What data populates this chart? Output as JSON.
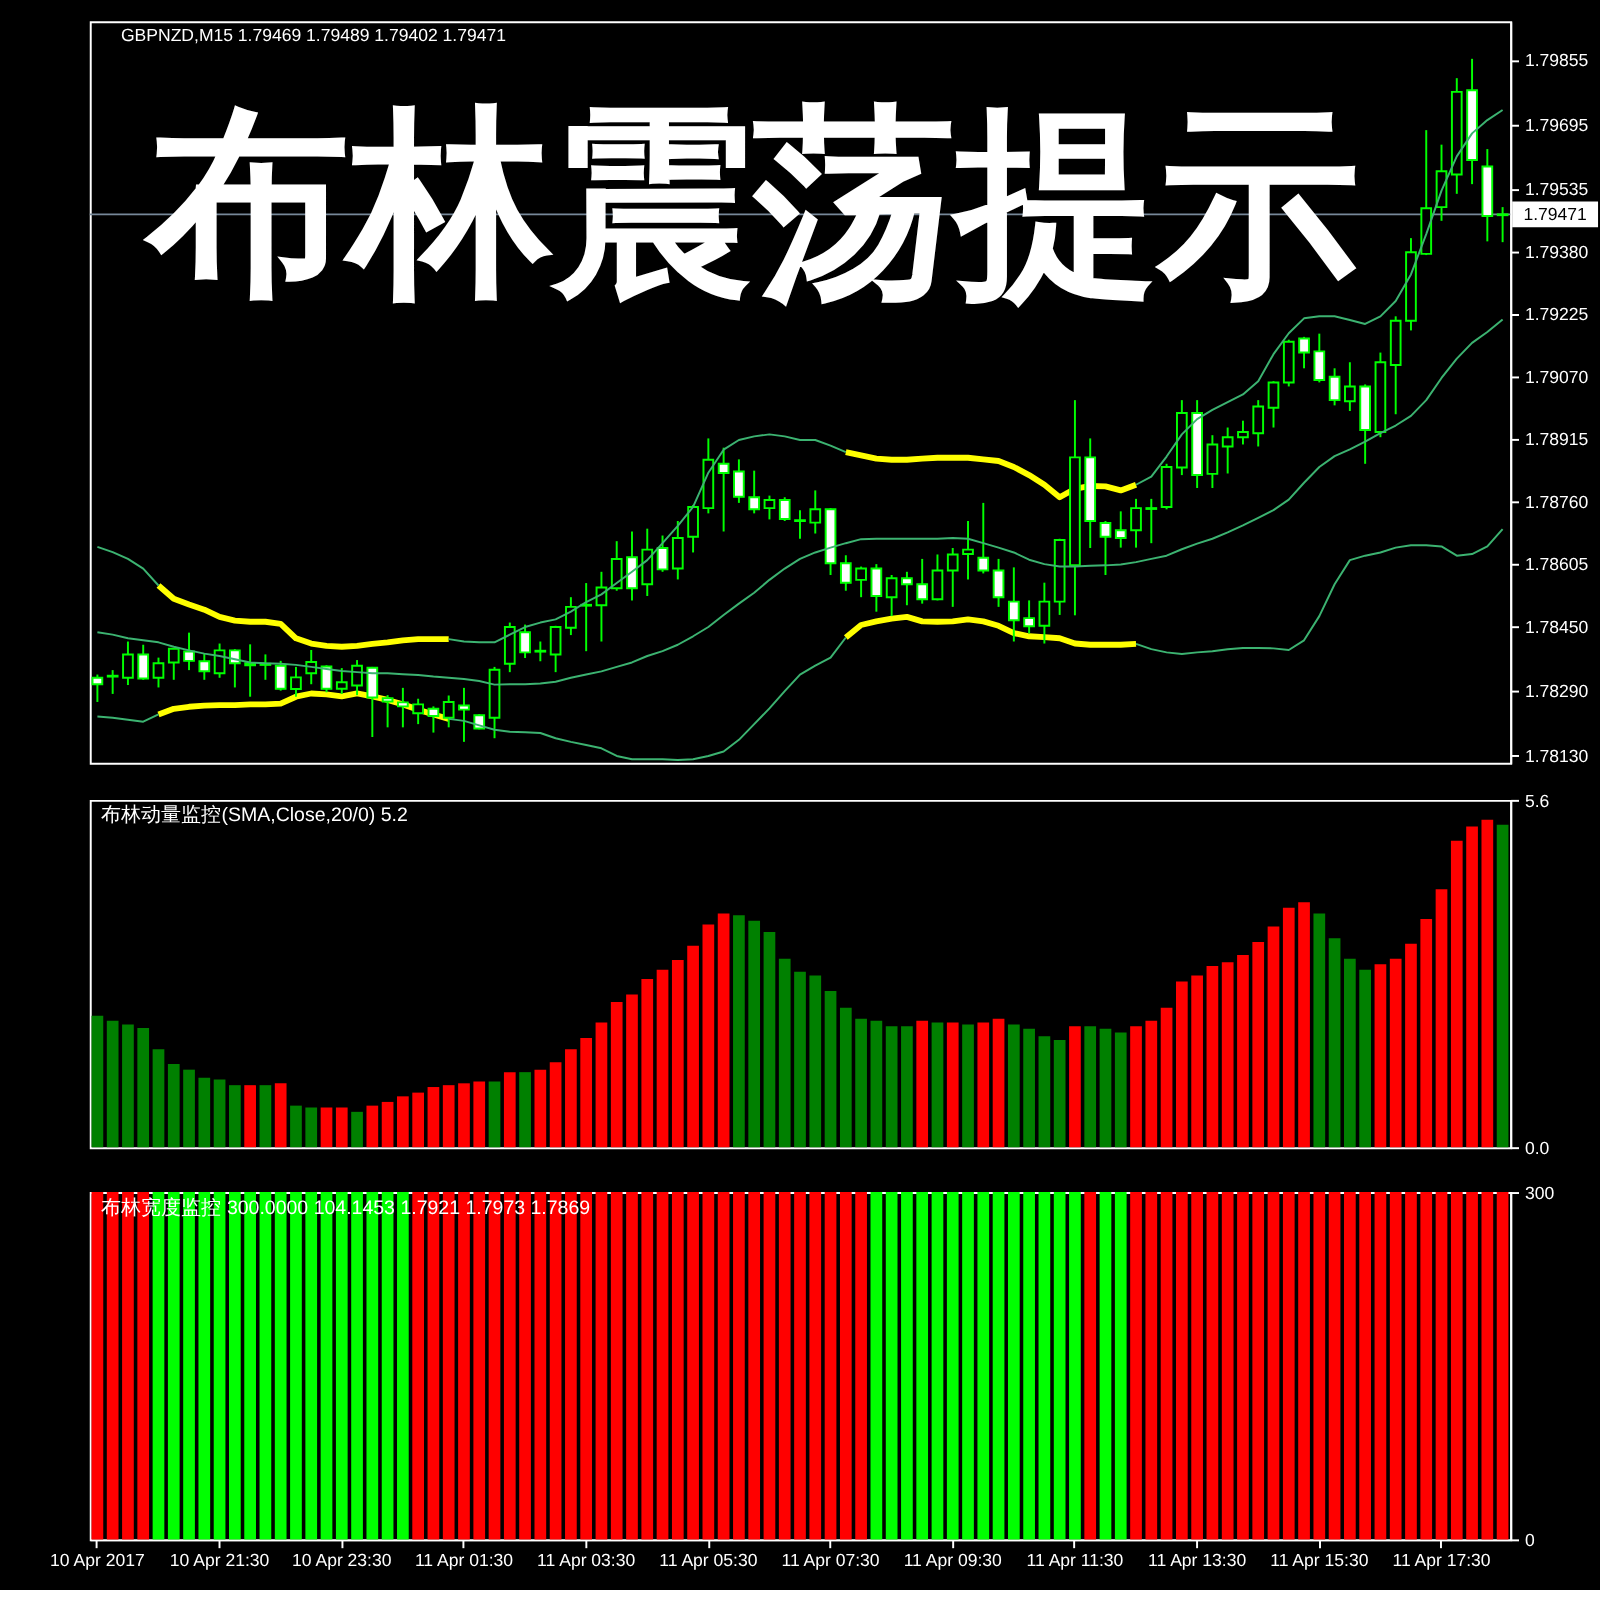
{
  "chart_data": [
    {
      "type": "candlestick",
      "title": "布林震荡提示",
      "subtitle": "GBPNZD,M15 1.79469 1.79489 1.79402 1.79471",
      "categories": [
        null,
        null,
        null,
        null,
        null,
        null,
        null,
        null,
        null,
        null,
        null,
        null,
        null,
        null,
        null,
        null,
        null,
        null,
        null,
        null,
        null,
        null,
        null,
        null,
        null,
        null,
        null,
        null,
        null,
        null,
        null,
        null,
        null,
        null,
        null,
        null,
        null,
        null,
        null,
        null,
        null,
        null,
        null,
        null,
        null,
        null,
        null,
        null,
        null,
        null,
        null,
        null,
        null,
        null,
        null,
        null,
        null,
        null,
        null,
        null,
        null,
        null,
        null,
        null,
        null,
        null,
        null,
        null,
        null,
        null,
        null,
        null,
        null,
        null,
        null,
        null,
        null,
        null,
        null,
        null,
        null,
        null,
        null,
        null,
        null,
        null,
        null,
        null,
        null,
        null,
        null,
        null,
        null
      ],
      "ohlc": [
        [
          1.78321,
          1.78329,
          1.78261,
          1.78305
        ],
        [
          1.78324,
          1.7834,
          1.78281,
          1.78326
        ],
        [
          1.78321,
          1.78411,
          1.78303,
          1.78379
        ],
        [
          1.78379,
          1.78403,
          1.78316,
          1.78319
        ],
        [
          1.78321,
          1.78371,
          1.78297,
          1.78357
        ],
        [
          1.78359,
          1.78395,
          1.78316,
          1.78393
        ],
        [
          1.78386,
          1.78433,
          1.7834,
          1.78363
        ],
        [
          1.78362,
          1.78382,
          1.78316,
          1.78337
        ],
        [
          1.78332,
          1.78406,
          1.78321,
          1.78389
        ],
        [
          1.78389,
          1.78392,
          1.78297,
          1.78357
        ],
        [
          1.78352,
          1.78404,
          1.78274,
          1.78357
        ],
        [
          1.78356,
          1.78379,
          1.78316,
          1.78353
        ],
        [
          1.78351,
          1.78363,
          1.78289,
          1.78294
        ],
        [
          1.78293,
          1.78348,
          1.78274,
          1.78322
        ],
        [
          1.78332,
          1.7839,
          1.78305,
          1.7836
        ],
        [
          1.78349,
          1.78352,
          1.78285,
          1.78294
        ],
        [
          1.78294,
          1.78345,
          1.78281,
          1.7831
        ],
        [
          1.78302,
          1.78365,
          1.78278,
          1.78351
        ],
        [
          1.78346,
          1.78348,
          1.78174,
          1.78272
        ],
        [
          1.7827,
          1.78278,
          1.78198,
          1.78262
        ],
        [
          1.7826,
          1.78296,
          1.78198,
          1.7825
        ],
        [
          1.78233,
          1.78269,
          1.78206,
          1.78255
        ],
        [
          1.78244,
          1.7825,
          1.78185,
          1.78226
        ],
        [
          1.78222,
          1.78277,
          1.78198,
          1.78261
        ],
        [
          1.78252,
          1.78296,
          1.78162,
          1.78242
        ],
        [
          1.78228,
          1.78231,
          1.78193,
          1.78195
        ],
        [
          1.78222,
          1.78348,
          1.78171,
          1.78341
        ],
        [
          1.78356,
          1.78458,
          1.78335,
          1.78447
        ],
        [
          1.78434,
          1.78453,
          1.7837,
          1.78384
        ],
        [
          1.78386,
          1.78411,
          1.78362,
          1.78388
        ],
        [
          1.78379,
          1.7845,
          1.78335,
          1.78447
        ],
        [
          1.78445,
          1.78521,
          1.78427,
          1.78497
        ],
        [
          1.785,
          1.78556,
          1.78387,
          1.78502
        ],
        [
          1.78501,
          1.78584,
          1.78411,
          1.78545
        ],
        [
          1.78543,
          1.7866,
          1.78537,
          1.78616
        ],
        [
          1.7862,
          1.78684,
          1.78513,
          1.78543
        ],
        [
          1.78553,
          1.78691,
          1.78524,
          1.78639
        ],
        [
          1.78643,
          1.78674,
          1.78584,
          1.7859
        ],
        [
          1.78592,
          1.7871,
          1.78565,
          1.78668
        ],
        [
          1.78671,
          1.7875,
          1.78632,
          1.78745
        ],
        [
          1.78742,
          1.78915,
          1.78729,
          1.78862
        ],
        [
          1.78852,
          1.78892,
          1.78684,
          1.78829
        ],
        [
          1.78833,
          1.78863,
          1.78755,
          1.7877
        ],
        [
          1.78769,
          1.78835,
          1.78729,
          1.78739
        ],
        [
          1.78742,
          1.78773,
          1.78714,
          1.78762
        ],
        [
          1.78762,
          1.78769,
          1.7871,
          1.78715
        ],
        [
          1.78712,
          1.78737,
          1.78666,
          1.7871
        ],
        [
          1.78706,
          1.78786,
          1.78679,
          1.78739
        ],
        [
          1.78739,
          1.78742,
          1.78576,
          1.78605
        ],
        [
          1.78605,
          1.78625,
          1.78537,
          1.78557
        ],
        [
          1.78564,
          1.78597,
          1.78521,
          1.78592
        ],
        [
          1.78592,
          1.78603,
          1.78485,
          1.78524
        ],
        [
          1.78521,
          1.78576,
          1.78474,
          1.78568
        ],
        [
          1.78568,
          1.78584,
          1.78501,
          1.78553
        ],
        [
          1.78553,
          1.78616,
          1.78505,
          1.78516
        ],
        [
          1.78516,
          1.78627,
          1.78513,
          1.78587
        ],
        [
          1.78587,
          1.78643,
          1.78497,
          1.78627
        ],
        [
          1.78628,
          1.7871,
          1.78565,
          1.78639
        ],
        [
          1.78619,
          1.78755,
          1.7858,
          1.78587
        ],
        [
          1.78587,
          1.78616,
          1.78497,
          1.78521
        ],
        [
          1.7851,
          1.78595,
          1.78411,
          1.78464
        ],
        [
          1.78469,
          1.78513,
          1.78431,
          1.78449
        ],
        [
          1.7845,
          1.78557,
          1.78406,
          1.7851
        ],
        [
          1.7851,
          1.78666,
          1.78477,
          1.78663
        ],
        [
          1.786,
          1.7901,
          1.78476,
          1.78868
        ],
        [
          1.78868,
          1.78915,
          1.78643,
          1.7871
        ],
        [
          1.78705,
          1.7871,
          1.78576,
          1.78671
        ],
        [
          1.78687,
          1.78734,
          1.78644,
          1.78668
        ],
        [
          1.78687,
          1.78765,
          1.78644,
          1.78742
        ],
        [
          1.7874,
          1.78765,
          1.78655,
          1.78742
        ],
        [
          1.78745,
          1.78852,
          1.78739,
          1.78844
        ],
        [
          1.78843,
          1.7901,
          1.78824,
          1.78978
        ],
        [
          1.78978,
          1.7901,
          1.78792,
          1.78824
        ],
        [
          1.78827,
          1.78923,
          1.78792,
          1.789
        ],
        [
          1.78895,
          1.78942,
          1.78828,
          1.78918
        ],
        [
          1.78918,
          1.78959,
          1.789,
          1.78931
        ],
        [
          1.78928,
          1.7901,
          1.78895,
          1.78994
        ],
        [
          1.78991,
          1.79057,
          1.78942,
          1.79054
        ],
        [
          1.79054,
          1.7916,
          1.79044,
          1.79155
        ],
        [
          1.79163,
          1.79167,
          1.79089,
          1.79128
        ],
        [
          1.79131,
          1.79175,
          1.79054,
          1.7906
        ],
        [
          1.79068,
          1.79089,
          1.78997,
          1.7901
        ],
        [
          1.79007,
          1.79104,
          1.78983,
          1.79044
        ],
        [
          1.79044,
          1.79049,
          1.78852,
          1.78936
        ],
        [
          1.78931,
          1.79128,
          1.78918,
          1.79104
        ],
        [
          1.79097,
          1.79218,
          1.78975,
          1.79207
        ],
        [
          1.79207,
          1.79412,
          1.79183,
          1.79377
        ],
        [
          1.79373,
          1.7968,
          1.7937,
          1.79486
        ],
        [
          1.79489,
          1.79644,
          1.79455,
          1.79578
        ],
        [
          1.7957,
          1.79809,
          1.79522,
          1.79775
        ],
        [
          1.79779,
          1.79857,
          1.79546,
          1.79606
        ],
        [
          1.7959,
          1.79633,
          1.79404,
          1.79467
        ],
        [
          1.79469,
          1.79489,
          1.79402,
          1.79471
        ]
      ],
      "color": "#00ff00",
      "colors": [
        "#ffffff",
        "#000000",
        "#000000",
        "#ffffff",
        "#000000",
        "#000000",
        "#ffffff",
        "#ffffff",
        "#000000",
        "#ffffff",
        "#000000",
        "#ffffff",
        "#ffffff",
        "#000000",
        "#000000",
        "#ffffff",
        "#000000",
        "#000000",
        "#ffffff",
        "#ffffff",
        "#ffffff",
        "#000000",
        "#ffffff",
        "#000000",
        "#ffffff",
        "#ffffff",
        "#000000",
        "#000000",
        "#ffffff",
        "#000000",
        "#000000",
        "#000000",
        "#000000",
        "#000000",
        "#000000",
        "#ffffff",
        "#000000",
        "#ffffff",
        "#000000",
        "#000000",
        "#000000",
        "#ffffff",
        "#ffffff",
        "#ffffff",
        "#000000",
        "#ffffff",
        "#ffffff",
        "#000000",
        "#ffffff",
        "#ffffff",
        "#000000",
        "#ffffff",
        "#000000",
        "#ffffff",
        "#ffffff",
        "#000000",
        "#000000",
        "#000000",
        "#ffffff",
        "#ffffff",
        "#ffffff",
        "#ffffff",
        "#000000",
        "#000000",
        "#000000",
        "#ffffff",
        "#ffffff",
        "#ffffff",
        "#000000",
        "#000000",
        "#000000",
        "#000000",
        "#ffffff",
        "#000000",
        "#000000",
        "#000000",
        "#000000",
        "#000000",
        "#000000",
        "#ffffff",
        "#ffffff",
        "#ffffff",
        "#000000",
        "#ffffff",
        "#000000",
        "#000000",
        "#000000",
        "#000000",
        "#000000",
        "#000000",
        "#ffffff",
        "#ffffff",
        "#000000"
      ],
      "series": [
        {
          "type": "line",
          "color": "#3cb371",
          "values": [
            1.78646,
            1.78633,
            1.78616,
            1.78592,
            1.7855,
            null,
            null,
            null,
            null,
            null,
            null,
            null,
            null,
            null,
            null,
            null,
            null,
            null,
            null,
            null,
            null,
            null,
            null,
            1.78417,
            1.78411,
            1.78409,
            1.78409,
            1.78428,
            1.78447,
            1.78458,
            1.78466,
            1.78485,
            1.78509,
            1.78528,
            1.78556,
            1.78584,
            1.78613,
            1.78655,
            1.78698,
            1.78745,
            1.7883,
            1.78887,
            1.78911,
            1.7892,
            1.78925,
            1.7892,
            1.78911,
            1.78911,
            1.78897,
            1.78881,
            null,
            null,
            null,
            null,
            null,
            null,
            null,
            null,
            null,
            null,
            null,
            null,
            null,
            null,
            null,
            null,
            null,
            null,
            1.788,
            1.7882,
            1.7887,
            1.78925,
            1.78963,
            1.78986,
            1.79005,
            1.79024,
            1.79057,
            1.79124,
            1.79176,
            1.79213,
            1.79218,
            1.79218,
            1.79209,
            1.79199,
            1.79218,
            1.79256,
            1.79322,
            1.79422,
            1.7953,
            1.79615,
            1.79672,
            1.79705,
            1.7973
          ]
        },
        {
          "type": "line",
          "color": "#3cb371",
          "values": [
            1.78434,
            1.78428,
            1.78419,
            1.78414,
            1.78409,
            1.78398,
            1.78389,
            1.78381,
            1.78375,
            1.78367,
            1.78359,
            1.78357,
            1.78356,
            1.78353,
            1.78348,
            1.78343,
            1.78338,
            1.78335,
            1.78332,
            1.78332,
            1.7833,
            1.78328,
            1.78324,
            1.78321,
            1.78318,
            1.78313,
            1.78304,
            1.78305,
            1.78305,
            1.78307,
            1.78311,
            1.78321,
            1.78329,
            1.78337,
            1.78348,
            1.78359,
            1.78375,
            1.78387,
            1.78403,
            1.78424,
            1.78447,
            1.78477,
            1.78505,
            1.78532,
            1.78564,
            1.78592,
            1.78616,
            1.78632,
            1.78644,
            1.78655,
            1.78665,
            1.78666,
            1.78666,
            1.78666,
            1.78666,
            1.78666,
            1.78668,
            1.78666,
            1.78655,
            1.78644,
            1.78632,
            1.78614,
            1.78603,
            1.78597,
            1.78597,
            1.78599,
            1.786,
            1.78602,
            1.78608,
            1.78616,
            1.78624,
            1.7864,
            1.78654,
            1.78666,
            1.78682,
            1.78699,
            1.78718,
            1.78737,
            1.78763,
            1.78805,
            1.78844,
            1.78871,
            1.78888,
            1.78907,
            1.78928,
            1.78947,
            1.78971,
            1.7901,
            1.79065,
            1.79113,
            1.79152,
            1.79179,
            1.7921
          ]
        },
        {
          "type": "line",
          "color": "#3cb371",
          "values": [
            1.78225,
            1.78222,
            1.78217,
            1.78212,
            1.7823,
            null,
            null,
            null,
            null,
            null,
            null,
            null,
            null,
            null,
            null,
            null,
            null,
            null,
            null,
            null,
            null,
            null,
            null,
            1.78219,
            1.78214,
            1.78203,
            1.78192,
            1.78187,
            1.78186,
            1.78184,
            1.78171,
            1.78162,
            1.78154,
            1.78146,
            1.78127,
            1.78119,
            1.78119,
            1.78119,
            1.78117,
            1.78119,
            1.78127,
            1.78138,
            1.78167,
            1.78206,
            1.78245,
            1.78288,
            1.78329,
            1.78351,
            1.78371,
            1.78421,
            null,
            null,
            null,
            null,
            null,
            null,
            null,
            null,
            null,
            null,
            null,
            null,
            null,
            null,
            null,
            null,
            null,
            null,
            1.78405,
            1.78392,
            1.78384,
            1.7838,
            1.78384,
            1.78387,
            1.78392,
            1.78395,
            1.78395,
            1.78394,
            1.7839,
            1.78414,
            1.78474,
            1.78553,
            1.78613,
            1.78624,
            1.78632,
            1.78644,
            1.7865,
            1.7865,
            1.78647,
            1.78624,
            1.78628,
            1.78647,
            1.7869
          ]
        },
        {
          "type": "line",
          "color": "#ffff00",
          "values": [
            null,
            null,
            null,
            null,
            1.7855,
            1.78517,
            1.78503,
            1.7849,
            1.78472,
            1.78463,
            1.7846,
            1.7846,
            1.78455,
            1.78419,
            1.78406,
            1.784,
            1.78398,
            1.784,
            1.78405,
            1.78409,
            1.78414,
            1.78417,
            1.78417,
            1.78417,
            null,
            null,
            null,
            null,
            null,
            null,
            null,
            null,
            null,
            null,
            null,
            null,
            null,
            null,
            null,
            null,
            null,
            null,
            null,
            null,
            null,
            null,
            null,
            null,
            null,
            1.78881,
            1.78873,
            1.78865,
            1.78862,
            1.78862,
            1.78865,
            1.78867,
            1.78867,
            1.78867,
            1.78863,
            1.78859,
            1.78844,
            1.78824,
            1.788,
            1.78769,
            1.7879,
            1.78797,
            1.78796,
            1.78786,
            1.788,
            null,
            null,
            null,
            null,
            null,
            null,
            null,
            null,
            null,
            null,
            null,
            null,
            null,
            null,
            null,
            null,
            null,
            null,
            null,
            null,
            null,
            null,
            null,
            null
          ]
        },
        {
          "type": "line",
          "color": "#ffff00",
          "values": [
            null,
            null,
            null,
            null,
            1.7823,
            1.78244,
            1.78249,
            1.78252,
            1.78253,
            1.78253,
            1.78255,
            1.78255,
            1.78257,
            1.78274,
            1.78282,
            1.7828,
            1.78275,
            1.78282,
            1.78275,
            1.78266,
            1.78255,
            1.78242,
            1.7823,
            1.78219,
            null,
            null,
            null,
            null,
            null,
            null,
            null,
            null,
            null,
            null,
            null,
            null,
            null,
            null,
            null,
            null,
            null,
            null,
            null,
            null,
            null,
            null,
            null,
            null,
            null,
            1.78421,
            1.78452,
            1.78461,
            1.78468,
            1.78472,
            1.78461,
            1.7846,
            1.78461,
            1.78466,
            1.78461,
            1.7845,
            1.78432,
            1.78424,
            1.78422,
            1.78419,
            1.78406,
            1.78403,
            1.78403,
            1.78403,
            1.78405,
            null,
            null,
            null,
            null,
            null,
            null,
            null,
            null,
            null,
            null,
            null,
            null,
            null,
            null,
            null,
            null,
            null,
            null,
            null,
            null,
            null,
            null,
            null,
            null
          ]
        }
      ],
      "ylim": [
        1.7811,
        1.7995
      ],
      "yticks": [
        {
          "value": 1.7813,
          "label": "1.78130"
        },
        {
          "value": 1.7829,
          "label": "1.78290"
        },
        {
          "value": 1.7845,
          "label": "1.78450"
        },
        1.78605,
        {
          "value": 1.7876,
          "label": "1.78760"
        },
        1.78915,
        {
          "value": 1.7907,
          "label": "1.79070"
        },
        1.79225,
        {
          "value": 1.7938,
          "label": "1.79380"
        },
        1.79535,
        1.79695,
        1.79855
      ],
      "ref_lines": [
        {
          "axis": "y",
          "value": 1.79471,
          "label": "1.79471",
          "color": "#778899"
        }
      ],
      "tick_labels": "y"
    },
    {
      "type": "bar",
      "title": "布林动量监控(SMA,Close,20/0) 5.2",
      "categories": [
        null,
        null,
        null,
        null,
        null,
        null,
        null,
        null,
        null,
        null,
        null,
        null,
        null,
        null,
        null,
        null,
        null,
        null,
        null,
        null,
        null,
        null,
        null,
        null,
        null,
        null,
        null,
        null,
        null,
        null,
        null,
        null,
        null,
        null,
        null,
        null,
        null,
        null,
        null,
        null,
        null,
        null,
        null,
        null,
        null,
        null,
        null,
        null,
        null,
        null,
        null,
        null,
        null,
        null,
        null,
        null,
        null,
        null,
        null,
        null,
        null,
        null,
        null,
        null,
        null,
        null,
        null,
        null,
        null,
        null,
        null,
        null,
        null,
        null,
        null,
        null,
        null,
        null,
        null,
        null,
        null,
        null,
        null,
        null,
        null,
        null,
        null,
        null,
        null,
        null,
        null,
        null,
        null
      ],
      "values": [
        2.12,
        2.04,
        1.98,
        1.92,
        1.58,
        1.34,
        1.25,
        1.12,
        1.09,
        1.0,
        1.0,
        1.0,
        1.03,
        0.67,
        0.64,
        0.64,
        0.64,
        0.57,
        0.67,
        0.73,
        0.82,
        0.88,
        0.97,
        1.0,
        1.03,
        1.06,
        1.06,
        1.21,
        1.21,
        1.25,
        1.37,
        1.58,
        1.76,
        2.01,
        2.34,
        2.46,
        2.71,
        2.86,
        3.02,
        3.25,
        3.59,
        3.77,
        3.74,
        3.65,
        3.47,
        3.04,
        2.83,
        2.77,
        2.52,
        2.25,
        2.07,
        2.04,
        1.95,
        1.95,
        2.04,
        2.01,
        2.01,
        1.98,
        2.01,
        2.07,
        1.98,
        1.91,
        1.79,
        1.73,
        1.95,
        1.95,
        1.91,
        1.85,
        1.95,
        2.04,
        2.25,
        2.67,
        2.77,
        2.92,
        2.98,
        3.1,
        3.31,
        3.56,
        3.86,
        3.95,
        3.77,
        3.37,
        3.04,
        2.86,
        2.95,
        3.04,
        3.28,
        3.68,
        4.16,
        4.94,
        5.17,
        5.28,
        5.2
      ],
      "colors": [
        "#008000",
        "#008000",
        "#008000",
        "#008000",
        "#008000",
        "#008000",
        "#008000",
        "#008000",
        "#008000",
        "#008000",
        "#ff0000",
        "#008000",
        "#ff0000",
        "#008000",
        "#008000",
        "#ff0000",
        "#ff0000",
        "#008000",
        "#ff0000",
        "#ff0000",
        "#ff0000",
        "#ff0000",
        "#ff0000",
        "#ff0000",
        "#ff0000",
        "#ff0000",
        "#008000",
        "#ff0000",
        "#008000",
        "#ff0000",
        "#ff0000",
        "#ff0000",
        "#ff0000",
        "#ff0000",
        "#ff0000",
        "#ff0000",
        "#ff0000",
        "#ff0000",
        "#ff0000",
        "#ff0000",
        "#ff0000",
        "#ff0000",
        "#008000",
        "#008000",
        "#008000",
        "#008000",
        "#008000",
        "#008000",
        "#008000",
        "#008000",
        "#008000",
        "#008000",
        "#008000",
        "#008000",
        "#ff0000",
        "#008000",
        "#ff0000",
        "#008000",
        "#ff0000",
        "#ff0000",
        "#008000",
        "#008000",
        "#008000",
        "#008000",
        "#ff0000",
        "#008000",
        "#008000",
        "#008000",
        "#ff0000",
        "#ff0000",
        "#ff0000",
        "#ff0000",
        "#ff0000",
        "#ff0000",
        "#ff0000",
        "#ff0000",
        "#ff0000",
        "#ff0000",
        "#ff0000",
        "#ff0000",
        "#008000",
        "#008000",
        "#008000",
        "#008000",
        "#ff0000",
        "#ff0000",
        "#ff0000",
        "#ff0000",
        "#ff0000",
        "#ff0000",
        "#ff0000",
        "#ff0000",
        "#008000"
      ],
      "ylim": [
        0,
        5.6
      ],
      "yticks": [
        5.6,
        {
          "value": 0,
          "label": "0.0"
        }
      ],
      "tick_labels": "y"
    },
    {
      "type": "bar",
      "title": "布林宽度监控 300.0000 104.1453 1.7921 1.7973 1.7869",
      "categories": [
        "10 Apr 2017",
        null,
        null,
        null,
        null,
        null,
        null,
        null,
        "10 Apr 21:30",
        null,
        null,
        null,
        null,
        null,
        null,
        null,
        "10 Apr 23:30",
        null,
        null,
        null,
        null,
        null,
        null,
        null,
        "11 Apr 01:30",
        null,
        null,
        null,
        null,
        null,
        null,
        null,
        "11 Apr 03:30",
        null,
        null,
        null,
        null,
        null,
        null,
        null,
        "11 Apr 05:30",
        null,
        null,
        null,
        null,
        null,
        null,
        null,
        "11 Apr 07:30",
        null,
        null,
        null,
        null,
        null,
        null,
        null,
        "11 Apr 09:30",
        null,
        null,
        null,
        null,
        null,
        null,
        null,
        "11 Apr 11:30",
        null,
        null,
        null,
        null,
        null,
        null,
        null,
        "11 Apr 13:30",
        null,
        null,
        null,
        null,
        null,
        null,
        null,
        "11 Apr 15:30",
        null,
        null,
        null,
        null,
        null,
        null,
        null,
        "11 Apr 17:30",
        null,
        null,
        null,
        null
      ],
      "values": [
        300,
        300,
        300,
        300,
        300,
        300,
        300,
        300,
        300,
        300,
        300,
        300,
        300,
        300,
        300,
        300,
        300,
        300,
        300,
        300,
        300,
        300,
        300,
        300,
        300,
        300,
        300,
        300,
        300,
        300,
        300,
        300,
        300,
        300,
        300,
        300,
        300,
        300,
        300,
        300,
        300,
        300,
        300,
        300,
        300,
        300,
        300,
        300,
        300,
        300,
        300,
        300,
        300,
        300,
        300,
        300,
        300,
        300,
        300,
        300,
        300,
        300,
        300,
        300,
        300,
        300,
        300,
        300,
        300,
        300,
        300,
        300,
        300,
        300,
        300,
        300,
        300,
        300,
        300,
        300,
        300,
        300,
        300,
        300,
        300,
        300,
        300,
        300,
        300,
        300,
        300,
        300,
        300
      ],
      "colors": [
        "#ff0000",
        "#ff0000",
        "#ff0000",
        "#ff0000",
        "#00ff00",
        "#00ff00",
        "#00ff00",
        "#00ff00",
        "#00ff00",
        "#00ff00",
        "#00ff00",
        "#00ff00",
        "#00ff00",
        "#00ff00",
        "#00ff00",
        "#00ff00",
        "#00ff00",
        "#00ff00",
        "#00ff00",
        "#00ff00",
        "#00ff00",
        "#ff0000",
        "#ff0000",
        "#ff0000",
        "#ff0000",
        "#ff0000",
        "#ff0000",
        "#ff0000",
        "#ff0000",
        "#ff0000",
        "#ff0000",
        "#ff0000",
        "#ff0000",
        "#ff0000",
        "#ff0000",
        "#ff0000",
        "#ff0000",
        "#ff0000",
        "#ff0000",
        "#ff0000",
        "#ff0000",
        "#ff0000",
        "#ff0000",
        "#ff0000",
        "#ff0000",
        "#ff0000",
        "#ff0000",
        "#ff0000",
        "#ff0000",
        "#ff0000",
        "#ff0000",
        "#00ff00",
        "#00ff00",
        "#00ff00",
        "#00ff00",
        "#00ff00",
        "#00ff00",
        "#00ff00",
        "#00ff00",
        "#00ff00",
        "#00ff00",
        "#00ff00",
        "#00ff00",
        "#00ff00",
        "#00ff00",
        "#ff0000",
        "#00ff00",
        "#00ff00",
        "#ff0000",
        "#ff0000",
        "#ff0000",
        "#ff0000",
        "#ff0000",
        "#ff0000",
        "#ff0000",
        "#ff0000",
        "#ff0000",
        "#ff0000",
        "#ff0000",
        "#ff0000",
        "#ff0000",
        "#ff0000",
        "#ff0000",
        "#ff0000",
        "#ff0000",
        "#ff0000",
        "#ff0000",
        "#ff0000",
        "#ff0000",
        "#ff0000",
        "#ff0000",
        "#ff0000",
        "#ff0000"
      ],
      "ylim": [
        0,
        300
      ],
      "yticks": [
        300,
        0
      ]
    }
  ]
}
